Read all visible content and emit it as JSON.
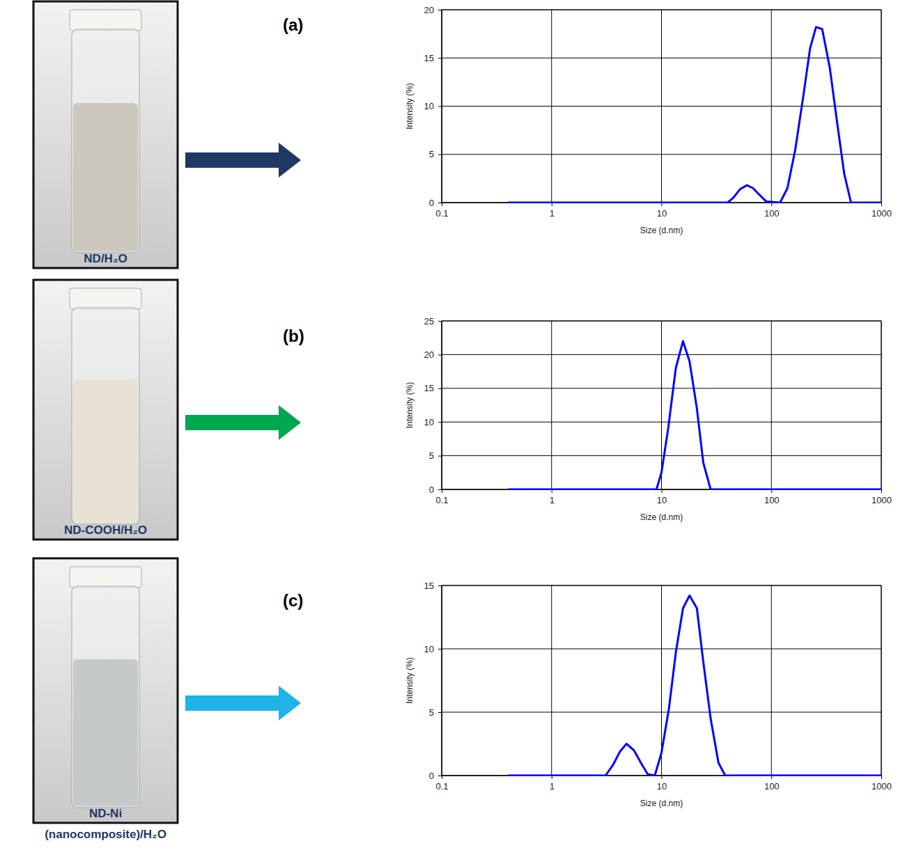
{
  "chart_data": [
    {
      "type": "line",
      "title": "(a)",
      "annotations": [
        "ND/H₂O"
      ],
      "x_label": "Size (d.nm)",
      "y_label": "Intensity (%)",
      "x": [
        0.4,
        40,
        45,
        52,
        60,
        68,
        78,
        90,
        120,
        140,
        165,
        195,
        225,
        255,
        290,
        340,
        400,
        460,
        530,
        1000
      ],
      "values": [
        0,
        0,
        0.5,
        1.4,
        1.8,
        1.5,
        0.8,
        0.1,
        0,
        1.5,
        5.5,
        11,
        16,
        18.2,
        18,
        14,
        8,
        3,
        0,
        0
      ],
      "color": "#0000ff",
      "log": "x",
      "grid": true,
      "xlim": [
        0.1,
        1000
      ],
      "xticks": [
        0.1,
        1,
        10,
        100,
        1000
      ],
      "ylim": [
        0,
        20
      ],
      "yticks": [
        0,
        5,
        10,
        15,
        20
      ]
    },
    {
      "type": "line",
      "title": "(b)",
      "annotations": [
        "ND-COOH/H₂O"
      ],
      "x_label": "Size (d.nm)",
      "y_label": "Intensity (%)",
      "x": [
        0.4,
        9,
        10,
        11.5,
        13.5,
        15.7,
        18,
        21,
        24,
        28,
        1000
      ],
      "values": [
        0,
        0,
        2.5,
        9,
        18,
        22,
        19,
        12,
        4,
        0,
        0
      ],
      "color": "#0000ff",
      "log": "x",
      "grid": true,
      "xlim": [
        0.1,
        1000
      ],
      "xticks": [
        0.1,
        1,
        10,
        100,
        1000
      ],
      "ylim": [
        0,
        25
      ],
      "yticks": [
        0,
        5,
        10,
        15,
        20,
        25
      ]
    },
    {
      "type": "line",
      "title": "(c)",
      "annotations": [
        "ND-Ni (nanocomposite)/H₂O"
      ],
      "x_label": "Size (d.nm)",
      "y_label": "Intensity (%)",
      "x": [
        0.4,
        3.1,
        3.6,
        4.2,
        4.8,
        5.6,
        6.5,
        7.5,
        8.7,
        10,
        11.7,
        13.5,
        15.7,
        18,
        21,
        24,
        28,
        33,
        38,
        1000
      ],
      "values": [
        0,
        0,
        0.8,
        1.9,
        2.5,
        2.0,
        1.0,
        0.1,
        0,
        1.8,
        5.3,
        9.7,
        13.2,
        14.2,
        13.2,
        9,
        4.5,
        1,
        0,
        0
      ],
      "color": "#0000ff",
      "log": "x",
      "grid": true,
      "xlim": [
        0.1,
        1000
      ],
      "xticks": [
        0.1,
        1,
        10,
        100,
        1000
      ],
      "ylim": [
        0,
        15
      ],
      "yticks": [
        0,
        5,
        10,
        15
      ]
    }
  ]
}
